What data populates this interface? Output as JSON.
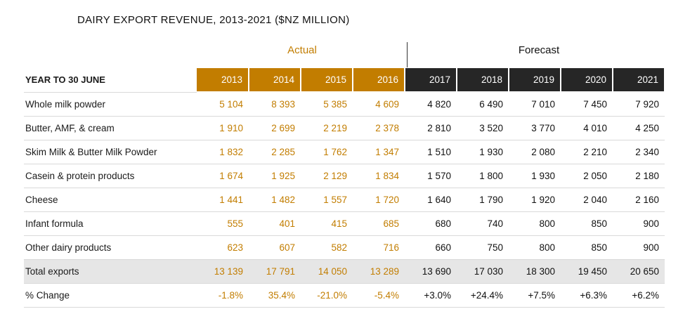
{
  "title": "DAIRY EXPORT REVENUE, 2013-2021 ($NZ MILLION)",
  "groups": {
    "actual": "Actual",
    "forecast": "Forecast"
  },
  "header_label": "YEAR TO 30 JUNE",
  "actual_years": [
    "2013",
    "2014",
    "2015",
    "2016"
  ],
  "forecast_years": [
    "2017",
    "2018",
    "2019",
    "2020",
    "2021"
  ],
  "rows": [
    {
      "label": "Whole milk powder",
      "actual": [
        "5 104",
        "8 393",
        "5 385",
        "4 609"
      ],
      "forecast": [
        "4 820",
        "6 490",
        "7 010",
        "7 450",
        "7 920"
      ]
    },
    {
      "label": "Butter, AMF, & cream",
      "actual": [
        "1 910",
        "2 699",
        "2 219",
        "2 378"
      ],
      "forecast": [
        "2 810",
        "3 520",
        "3 770",
        "4 010",
        "4 250"
      ]
    },
    {
      "label": "Skim Milk & Butter Milk Powder",
      "actual": [
        "1 832",
        "2 285",
        "1 762",
        "1 347"
      ],
      "forecast": [
        "1 510",
        "1 930",
        "2 080",
        "2 210",
        "2 340"
      ]
    },
    {
      "label": "Casein & protein products",
      "actual": [
        "1 674",
        "1 925",
        "2 129",
        "1 834"
      ],
      "forecast": [
        "1 570",
        "1 800",
        "1 930",
        "2 050",
        "2 180"
      ]
    },
    {
      "label": "Cheese",
      "actual": [
        "1 441",
        "1 482",
        "1 557",
        "1 720"
      ],
      "forecast": [
        "1 640",
        "1 790",
        "1 920",
        "2 040",
        "2 160"
      ]
    },
    {
      "label": "Infant formula",
      "actual": [
        "555",
        "401",
        "415",
        "685"
      ],
      "forecast": [
        "680",
        "740",
        "800",
        "850",
        "900"
      ]
    },
    {
      "label": "Other dairy products",
      "actual": [
        "623",
        "607",
        "582",
        "716"
      ],
      "forecast": [
        "660",
        "750",
        "800",
        "850",
        "900"
      ]
    }
  ],
  "total": {
    "label": "Total exports",
    "actual": [
      "13 139",
      "17 791",
      "14 050",
      "13 289"
    ],
    "forecast": [
      "13 690",
      "17 030",
      "18 300",
      "19 450",
      "20 650"
    ]
  },
  "change": {
    "label": "% Change",
    "actual": [
      "-1.8%",
      "35.4%",
      "-21.0%",
      "-5.4%"
    ],
    "forecast": [
      "+3.0%",
      "+24.4%",
      "+7.5%",
      "+6.3%",
      "+6.2%"
    ]
  },
  "colors": {
    "actual": "#c27d00",
    "forecast": "#262626",
    "total_bg": "#e6e6e6"
  }
}
